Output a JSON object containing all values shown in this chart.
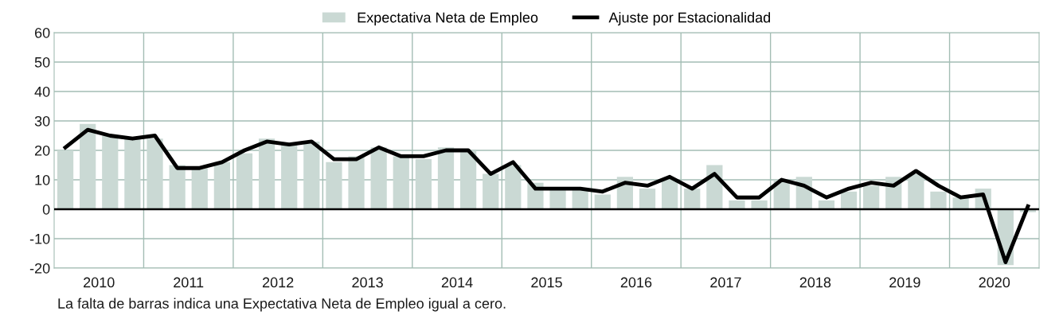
{
  "chart_data": {
    "type": "bar",
    "x": [
      2010.125,
      2010.375,
      2010.625,
      2010.875,
      2011.125,
      2011.375,
      2011.625,
      2011.875,
      2012.125,
      2012.375,
      2012.625,
      2012.875,
      2013.125,
      2013.375,
      2013.625,
      2013.875,
      2014.125,
      2014.375,
      2014.625,
      2014.875,
      2015.125,
      2015.375,
      2015.625,
      2015.875,
      2016.125,
      2016.375,
      2016.625,
      2016.875,
      2017.125,
      2017.375,
      2017.625,
      2017.875,
      2018.125,
      2018.375,
      2018.625,
      2018.875,
      2019.125,
      2019.375,
      2019.625,
      2019.875,
      2020.125,
      2020.375,
      2020.625,
      2020.875
    ],
    "series": [
      {
        "name": "Expectativa Neta de Empleo",
        "color": "#cad9d4",
        "values": [
          20,
          29,
          25,
          24,
          24,
          15,
          14,
          16,
          19,
          24,
          22,
          23,
          16,
          18,
          21,
          18,
          17,
          21,
          20,
          12,
          15,
          9,
          7,
          7,
          5,
          11,
          7,
          10,
          7,
          15,
          3,
          3,
          10,
          11,
          3,
          6,
          8,
          11,
          12,
          6,
          4,
          7,
          -19,
          -1
        ]
      },
      {
        "name": "Ajuste por Estacionalidad",
        "type": "line",
        "color": "#000000",
        "values": [
          21,
          27,
          25,
          24,
          25,
          14,
          14,
          16,
          20,
          23,
          22,
          23,
          17,
          17,
          21,
          18,
          18,
          20,
          20,
          12,
          16,
          7,
          7,
          7,
          6,
          9,
          8,
          11,
          7,
          12,
          4,
          4,
          10,
          8,
          4,
          7,
          9,
          8,
          13,
          8,
          4,
          5,
          -18,
          1
        ]
      }
    ],
    "xlim": [
      2010,
      2021
    ],
    "xticks": [
      {
        "value": 2010.5,
        "label": "2010"
      },
      {
        "value": 2011,
        "label": null
      },
      {
        "value": 2011.5,
        "label": "2011"
      },
      {
        "value": 2012,
        "label": null
      },
      {
        "value": 2012.5,
        "label": "2012"
      },
      {
        "value": 2013,
        "label": null
      },
      {
        "value": 2013.5,
        "label": "2013"
      },
      {
        "value": 2014,
        "label": null
      },
      {
        "value": 2014.5,
        "label": "2014"
      },
      {
        "value": 2015,
        "label": null
      },
      {
        "value": 2015.5,
        "label": "2015"
      },
      {
        "value": 2016,
        "label": null
      },
      {
        "value": 2016.5,
        "label": "2016"
      },
      {
        "value": 2017,
        "label": null
      },
      {
        "value": 2017.5,
        "label": "2017"
      },
      {
        "value": 2018,
        "label": null
      },
      {
        "value": 2018.5,
        "label": "2018"
      },
      {
        "value": 2019,
        "label": null
      },
      {
        "value": 2019.5,
        "label": "2019"
      },
      {
        "value": 2020,
        "label": null
      },
      {
        "value": 2020.5,
        "label": "2020"
      }
    ],
    "ylim": [
      -20,
      60
    ],
    "yticks": [
      -20,
      -10,
      0,
      10,
      20,
      30,
      40,
      50,
      60
    ],
    "ref_lines": [
      {
        "axis": "y",
        "value": 0,
        "color": "#000000"
      }
    ],
    "grid": true,
    "legend": "top",
    "line_style": "solid",
    "marker": "none",
    "annotations": [
      "La falta de barras indica una Expectativa Neta de Empleo igual a cero."
    ]
  }
}
